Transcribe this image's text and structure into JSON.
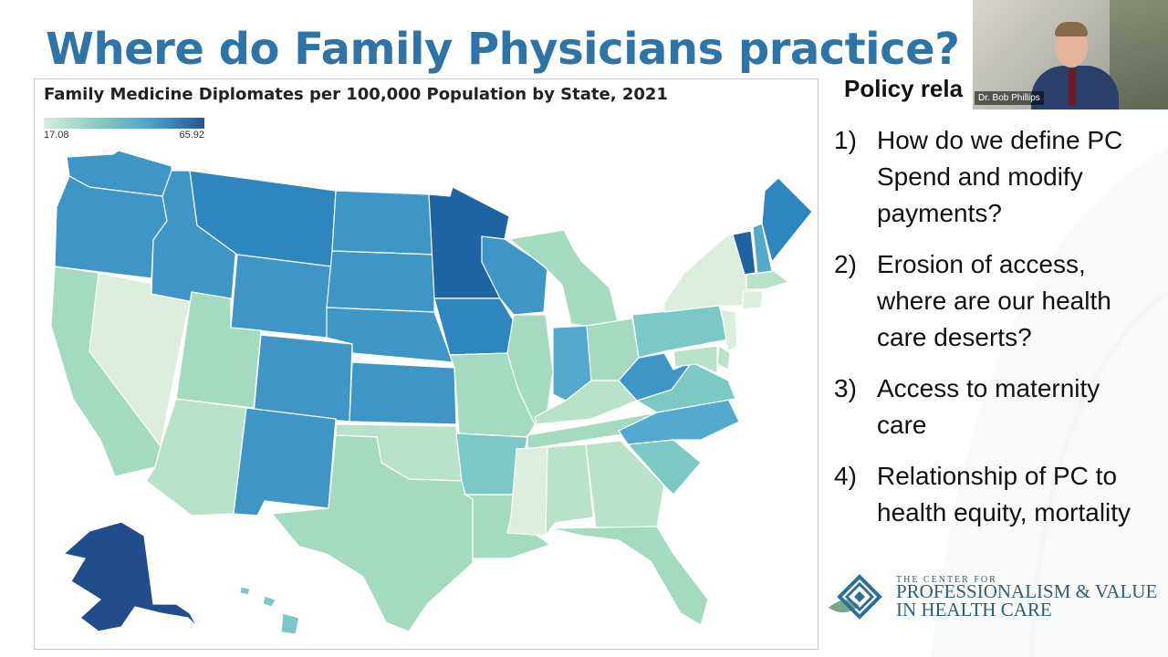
{
  "slide": {
    "title": "Where do Family Physicians practice?",
    "policy_heading": "Policy rela",
    "policy_items": [
      {
        "num": "1)",
        "text": "How do we define PC Spend and modify payments?"
      },
      {
        "num": "2)",
        "text": "Erosion of access, where are our health care deserts?"
      },
      {
        "num": "3)",
        "text": "Access to maternity care"
      },
      {
        "num": "4)",
        "text": "Relationship of PC to health equity, mortality"
      }
    ]
  },
  "map": {
    "title": "Family Medicine Diplomates per 100,000 Population by State, 2021",
    "legend_min": "17.08",
    "legend_max": "65.92",
    "colors": {
      "c1": "#dceedd",
      "c2": "#b9e2ca",
      "c3": "#a3dac0",
      "c4": "#7cc8c5",
      "c5": "#55a9cf",
      "c6": "#3e95c6",
      "c7": "#2f86be",
      "c8": "#1f64a2",
      "c9": "#234c8c"
    }
  },
  "video": {
    "speaker_name": "Dr. Bob Phillips"
  },
  "logo": {
    "top_line": "THE CENTER FOR",
    "main_line": "PROFESSIONALISM & VALUE",
    "sub_line": "IN HEALTH CARE"
  }
}
